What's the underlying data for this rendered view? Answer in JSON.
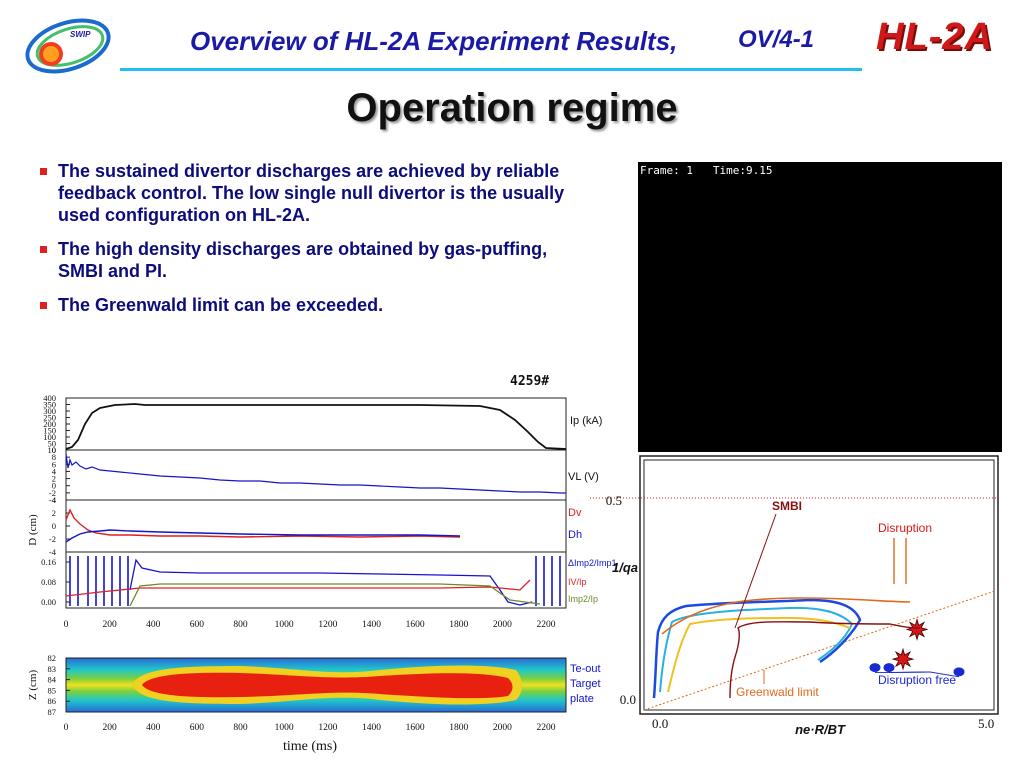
{
  "header": {
    "title": "Overview of HL-2A Experiment Results,",
    "code": "OV/4-1",
    "logo_text": "SWIP",
    "brand": "HL-2A"
  },
  "slide_title": "Operation regime",
  "bullets": [
    "The sustained divertor discharges are achieved by reliable feedback control. The low single null divertor is the usually used configuration on HL-2A.",
    "The high density discharges are obtained by gas-puffing, SMBI and PI.",
    "The Greenwald limit can be exceeded."
  ],
  "video": {
    "caption": "Frame: 1   Time:9.15"
  },
  "waveform": {
    "shot_label": "4259#",
    "panel1": {
      "ticks": [
        "400",
        "350",
        "300",
        "250",
        "200",
        "150",
        "100",
        "50",
        "0"
      ],
      "label": "Ip (kA)"
    },
    "panel2": {
      "ticks": [
        "10",
        "8",
        "6",
        "4",
        "2",
        "0",
        "-2",
        "-4"
      ],
      "label": "VL (V)"
    },
    "panel3": {
      "ticks": [
        "4",
        "2",
        "0",
        "-2",
        "-4"
      ],
      "ylabel": "D (cm)",
      "labels": [
        "Dv",
        "Dh"
      ]
    },
    "panel4": {
      "ticks": [
        "0.16",
        "0.08",
        "0.00"
      ],
      "labels": [
        "ΔImp2/Imp1",
        "IV/Ip",
        "Imp2/Ip"
      ]
    },
    "panel5": {
      "ticks": [
        "82",
        "83",
        "84",
        "85",
        "86",
        "87"
      ],
      "ylabel": "Z (cm)",
      "labels": [
        "Te-out",
        "Target",
        "plate"
      ]
    },
    "x_ticks": [
      "0",
      "200",
      "400",
      "600",
      "800",
      "1000",
      "1200",
      "1400",
      "1600",
      "1800",
      "2000",
      "2200"
    ],
    "xlabel": "time (ms)",
    "colors": {
      "ip": "#111111",
      "vl": "#1515c8",
      "dv": "#e02020",
      "dh": "#1515c8",
      "green": "#6a8a2a"
    }
  },
  "chart_data": {
    "type": "scatter",
    "title": "",
    "xlabel": "ne·R/BT",
    "ylabel": "1/qa",
    "xlim": [
      0.0,
      5.0
    ],
    "ylim": [
      0.0,
      0.5
    ],
    "x_ticks": [
      "0.0",
      "5.0"
    ],
    "y_ticks": [
      "0.0",
      "0.5"
    ],
    "annotations": [
      "SMBI",
      "Disruption",
      "Disruption free",
      "Greenwald limit"
    ],
    "disruption_points": [
      {
        "x": 3.9,
        "y": 0.19
      },
      {
        "x": 3.7,
        "y": 0.12
      }
    ],
    "disruption_free_points": [
      {
        "x": 4.5,
        "y": 0.09
      },
      {
        "x": 3.5,
        "y": 0.1
      },
      {
        "x": 3.3,
        "y": 0.1
      }
    ],
    "greenwald_limit": {
      "x": [
        0.0,
        5.0
      ],
      "y": [
        0.0,
        0.28
      ]
    },
    "upper_limit_y": 0.5,
    "colors": {
      "disruption": "#d81818",
      "disruption_free": "#1a2ad0",
      "greenwald": "#e06a1a",
      "smbi": "#8a1010"
    }
  }
}
